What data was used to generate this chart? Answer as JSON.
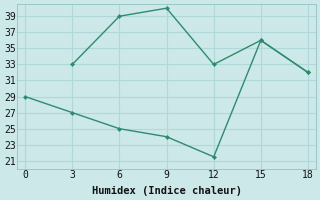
{
  "line1_x": [
    3,
    6,
    9,
    12,
    15,
    18
  ],
  "line1_y": [
    33,
    39,
    40,
    33,
    36,
    32
  ],
  "line2_x": [
    0,
    3,
    6,
    9,
    12,
    15,
    18
  ],
  "line2_y": [
    29,
    27,
    25,
    24,
    21.5,
    36,
    32
  ],
  "color": "#2e8b6e",
  "bg_color": "#cce8e8",
  "grid_color": "#b0d8d8",
  "xlabel": "Humidex (Indice chaleur)",
  "xlim": [
    -0.5,
    18.5
  ],
  "ylim": [
    20,
    40.5
  ],
  "xticks": [
    0,
    3,
    6,
    9,
    12,
    15,
    18
  ],
  "yticks": [
    21,
    23,
    25,
    27,
    29,
    31,
    33,
    35,
    37,
    39
  ],
  "marker": "D",
  "markersize": 2.5,
  "linewidth": 1.0,
  "font_size": 7.5
}
